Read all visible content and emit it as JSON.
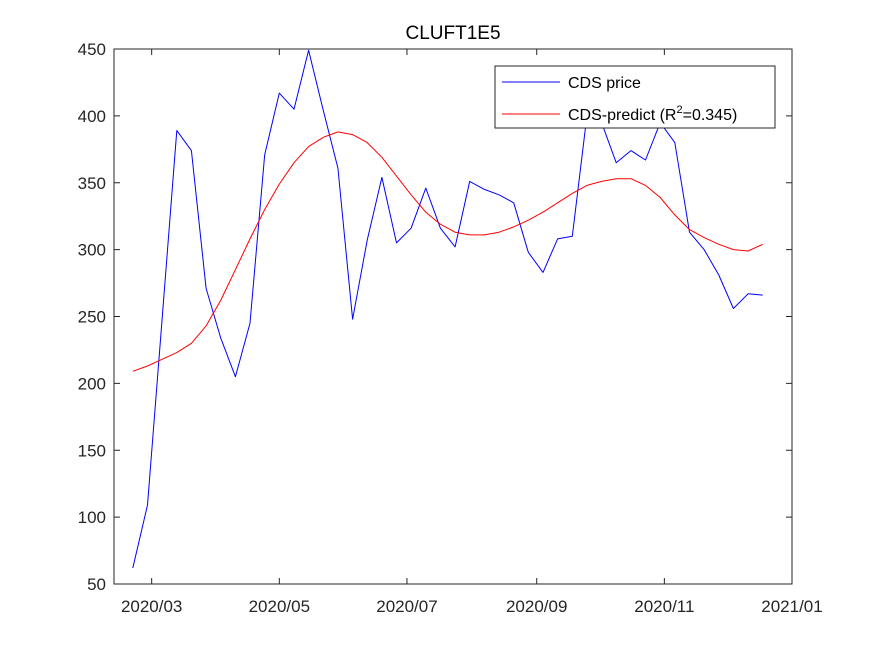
{
  "chart_data": {
    "type": "line",
    "title": "CLUFT1E5",
    "xlabel": "",
    "ylabel": "",
    "xlim": [
      "2020-02-12",
      "2021-01-01"
    ],
    "ylim": [
      50,
      450
    ],
    "x_ticks": [
      "2020/03",
      "2020/05",
      "2020/07",
      "2020/09",
      "2020/11",
      "2021/01"
    ],
    "y_ticks": [
      50,
      100,
      150,
      200,
      250,
      300,
      350,
      400,
      450
    ],
    "legend": {
      "location": "top-right",
      "entries": [
        "CDS price",
        "CDS-predict (R",
        "2",
        "=0.345)"
      ]
    },
    "series": [
      {
        "name": "CDS price",
        "color": "#0000ff",
        "x": [
          "2020-02-21",
          "2020-02-28",
          "2020-03-06",
          "2020-03-13",
          "2020-03-20",
          "2020-03-27",
          "2020-04-03",
          "2020-04-10",
          "2020-04-17",
          "2020-04-24",
          "2020-05-01",
          "2020-05-08",
          "2020-05-15",
          "2020-05-22",
          "2020-05-29",
          "2020-06-05",
          "2020-06-12",
          "2020-06-19",
          "2020-06-26",
          "2020-07-03",
          "2020-07-10",
          "2020-07-17",
          "2020-07-24",
          "2020-07-31",
          "2020-08-07",
          "2020-08-14",
          "2020-08-21",
          "2020-08-28",
          "2020-09-04",
          "2020-09-11",
          "2020-09-18",
          "2020-09-25",
          "2020-10-02",
          "2020-10-09",
          "2020-10-16",
          "2020-10-23",
          "2020-10-30",
          "2020-11-06",
          "2020-11-13",
          "2020-11-20",
          "2020-11-27",
          "2020-12-04",
          "2020-12-11",
          "2020-12-18"
        ],
        "values": [
          62,
          109,
          248,
          389,
          374,
          271,
          234,
          205,
          245,
          371,
          417,
          405,
          449,
          404,
          361,
          248,
          307,
          354,
          305,
          316,
          346,
          316,
          302,
          351,
          345,
          341,
          335,
          298,
          283,
          308,
          310,
          400,
          395,
          365,
          374,
          367,
          395,
          380,
          313,
          300,
          281,
          256,
          267,
          266
        ]
      },
      {
        "name": "CDS-predict (R2=0.345)",
        "color": "#ff0000",
        "x": [
          "2020-02-21",
          "2020-02-28",
          "2020-03-06",
          "2020-03-13",
          "2020-03-20",
          "2020-03-27",
          "2020-04-03",
          "2020-04-10",
          "2020-04-17",
          "2020-04-24",
          "2020-05-01",
          "2020-05-08",
          "2020-05-15",
          "2020-05-22",
          "2020-05-29",
          "2020-06-05",
          "2020-06-12",
          "2020-06-19",
          "2020-06-26",
          "2020-07-03",
          "2020-07-10",
          "2020-07-17",
          "2020-07-24",
          "2020-07-31",
          "2020-08-07",
          "2020-08-14",
          "2020-08-21",
          "2020-08-28",
          "2020-09-04",
          "2020-09-11",
          "2020-09-18",
          "2020-09-25",
          "2020-10-02",
          "2020-10-09",
          "2020-10-16",
          "2020-10-23",
          "2020-10-30",
          "2020-11-06",
          "2020-11-13",
          "2020-11-20",
          "2020-11-27",
          "2020-12-04",
          "2020-12-11",
          "2020-12-18"
        ],
        "values": [
          209,
          213,
          218,
          223,
          230,
          243,
          262,
          285,
          308,
          330,
          349,
          365,
          377,
          384,
          388,
          386,
          380,
          369,
          355,
          341,
          328,
          319,
          313,
          311,
          311,
          313,
          317,
          322,
          328,
          335,
          342,
          348,
          351,
          353,
          353,
          348,
          339,
          326,
          315,
          309,
          304,
          300,
          299,
          304
        ]
      }
    ]
  }
}
